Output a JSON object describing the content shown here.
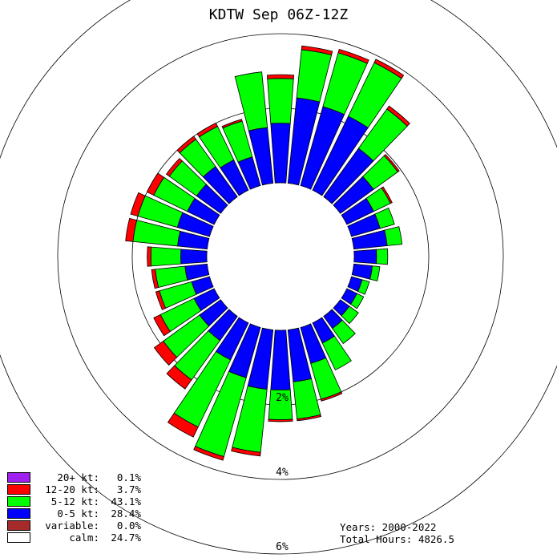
{
  "chart_data": {
    "type": "windrose",
    "title": "KDTW Sep 06Z-12Z",
    "rings": [
      2,
      4,
      6
    ],
    "ring_labels": [
      "2%",
      "4%",
      "6%"
    ],
    "calm_percent": 24.7,
    "speed_bins": [
      {
        "label": "0-5 kt",
        "color": "#0000ff"
      },
      {
        "label": "5-12 kt",
        "color": "#00ff00"
      },
      {
        "label": "12-20 kt",
        "color": "#ff0000"
      },
      {
        "label": "20+ kt",
        "color": "#a020f0"
      }
    ],
    "directions": [
      {
        "dir": 0,
        "values": [
          1.6,
          1.2,
          0.1
        ]
      },
      {
        "dir": 10,
        "values": [
          2.3,
          1.3,
          0.1
        ]
      },
      {
        "dir": 20,
        "values": [
          2.2,
          1.5,
          0.1
        ]
      },
      {
        "dir": 30,
        "values": [
          2.2,
          1.6,
          0.1
        ]
      },
      {
        "dir": 40,
        "values": [
          1.6,
          1.3,
          0.1
        ]
      },
      {
        "dir": 50,
        "values": [
          1.1,
          0.8,
          0.05
        ]
      },
      {
        "dir": 60,
        "values": [
          0.8,
          0.5,
          0.05
        ]
      },
      {
        "dir": 70,
        "values": [
          0.8,
          0.4
        ]
      },
      {
        "dir": 80,
        "values": [
          0.9,
          0.4
        ]
      },
      {
        "dir": 90,
        "values": [
          0.6,
          0.3
        ]
      },
      {
        "dir": 100,
        "values": [
          0.5,
          0.2
        ]
      },
      {
        "dir": 110,
        "values": [
          0.3,
          0.2
        ]
      },
      {
        "dir": 120,
        "values": [
          0.3,
          0.2
        ]
      },
      {
        "dir": 130,
        "values": [
          0.3,
          0.3
        ]
      },
      {
        "dir": 140,
        "values": [
          0.4,
          0.5
        ]
      },
      {
        "dir": 150,
        "values": [
          0.6,
          0.8
        ]
      },
      {
        "dir": 160,
        "values": [
          1.0,
          1.0,
          0.05
        ]
      },
      {
        "dir": 170,
        "values": [
          1.4,
          1.0,
          0.05
        ]
      },
      {
        "dir": 180,
        "values": [
          1.6,
          0.8,
          0.05
        ]
      },
      {
        "dir": 190,
        "values": [
          1.6,
          1.7,
          0.1
        ]
      },
      {
        "dir": 200,
        "values": [
          1.4,
          2.2,
          0.1
        ]
      },
      {
        "dir": 210,
        "values": [
          1.1,
          2.0,
          0.3
        ]
      },
      {
        "dir": 220,
        "values": [
          0.8,
          1.3,
          0.3
        ]
      },
      {
        "dir": 230,
        "values": [
          0.7,
          1.2,
          0.3
        ]
      },
      {
        "dir": 240,
        "values": [
          0.6,
          1.0,
          0.2
        ]
      },
      {
        "dir": 250,
        "values": [
          0.5,
          0.9,
          0.1
        ]
      },
      {
        "dir": 260,
        "values": [
          0.6,
          0.8,
          0.1
        ]
      },
      {
        "dir": 270,
        "values": [
          0.7,
          0.8,
          0.1
        ]
      },
      {
        "dir": 280,
        "values": [
          0.8,
          1.2,
          0.2
        ]
      },
      {
        "dir": 290,
        "values": [
          0.9,
          1.1,
          0.2
        ]
      },
      {
        "dir": 300,
        "values": [
          0.8,
          1.0,
          0.2
        ]
      },
      {
        "dir": 310,
        "values": [
          0.8,
          0.9,
          0.1
        ]
      },
      {
        "dir": 320,
        "values": [
          1.0,
          0.9,
          0.1
        ]
      },
      {
        "dir": 330,
        "values": [
          0.9,
          1.0,
          0.1
        ]
      },
      {
        "dir": 340,
        "values": [
          0.8,
          1.0,
          0.05
        ]
      },
      {
        "dir": 350,
        "values": [
          1.5,
          1.5
        ]
      }
    ]
  },
  "legend": [
    {
      "label": "20+ kt:",
      "value": "0.1%",
      "color": "#a020f0"
    },
    {
      "label": "12-20 kt:",
      "value": "3.7%",
      "color": "#ff0000"
    },
    {
      "label": "5-12 kt:",
      "value": "43.1%",
      "color": "#00ff00"
    },
    {
      "label": "0-5 kt:",
      "value": "28.4%",
      "color": "#0000ff"
    },
    {
      "label": "variable:",
      "value": "0.0%",
      "color": "#a52a2a"
    },
    {
      "label": "calm:",
      "value": "24.7%",
      "color": "#ffffff"
    }
  ],
  "footer": {
    "years": "Years: 2000-2022",
    "total_hours": "Total Hours: 4826.5"
  }
}
